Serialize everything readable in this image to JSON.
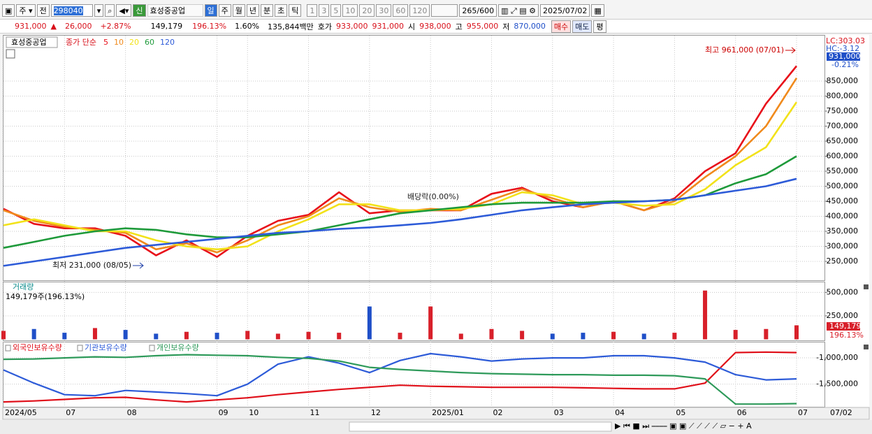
{
  "toolbar": {
    "market": "주",
    "prev": "전",
    "code": "298040",
    "new_flag": "신",
    "name": "효성중공업",
    "periods": [
      "일",
      "주",
      "월",
      "년",
      "분",
      "초",
      "틱"
    ],
    "intervals": [
      "1",
      "3",
      "5",
      "10",
      "20",
      "30",
      "60",
      "120"
    ],
    "count": "265",
    "count_max": "/600",
    "date": "2025/07/02"
  },
  "quote": {
    "price": "931,000",
    "arrow": "▲",
    "change": "26,000",
    "change_pct": "+2.87%",
    "volume": "149,179",
    "volume_ratio": "196.13%",
    "turnover": "1.60%",
    "amount": "135,844백만",
    "bid_label": "호가",
    "ask": "933,000",
    "bid": "931,000",
    "open_label": "시",
    "open": "938,000",
    "high_label": "고",
    "high": "955,000",
    "low_label": "저",
    "low": "870,000",
    "buy": "매수",
    "sell": "매도",
    "avg": "평"
  },
  "chart_data": [
    {
      "type": "line",
      "title": "효성중공업",
      "legend_prefix": "종가 단순",
      "categories": [
        "2024/05",
        null,
        "07",
        null,
        "08",
        null,
        null,
        "09",
        "10",
        null,
        "11",
        null,
        "12",
        null,
        "2025/01",
        null,
        "02",
        null,
        "03",
        null,
        "04",
        null,
        "05",
        null,
        "06",
        null,
        "07"
      ],
      "ylim": [
        190000,
        1000000
      ],
      "yticks": [
        {
          "value": 250000,
          "label": "250,000"
        },
        {
          "value": 300000,
          "label": "300,000"
        },
        {
          "value": 350000,
          "label": "350,000"
        },
        {
          "value": 400000,
          "label": "400,000"
        },
        {
          "value": 450000,
          "label": "450,000"
        },
        {
          "value": 500000,
          "label": "500,000"
        },
        {
          "value": 550000,
          "label": "550,000"
        },
        {
          "value": 600000,
          "label": "600,000"
        },
        {
          "value": 650000,
          "label": "650,000"
        },
        {
          "value": 700000,
          "label": "700,000"
        },
        {
          "value": 750000,
          "label": "750,000"
        },
        {
          "value": 800000,
          "label": "800,000"
        },
        {
          "value": 850000,
          "label": "850,000"
        }
      ],
      "grid": true,
      "series": [
        {
          "name": "5",
          "color": "#e8101a",
          "values": [
            425000,
            375000,
            360000,
            360000,
            335000,
            270000,
            320000,
            265000,
            335000,
            385000,
            405000,
            480000,
            410000,
            420000,
            420000,
            420000,
            475000,
            495000,
            450000,
            430000,
            450000,
            420000,
            460000,
            550000,
            610000,
            775000,
            900000
          ]
        },
        {
          "name": "10",
          "color": "#f08a1c",
          "values": [
            420000,
            385000,
            365000,
            355000,
            345000,
            290000,
            310000,
            280000,
            320000,
            370000,
            400000,
            460000,
            430000,
            415000,
            425000,
            420000,
            455000,
            490000,
            460000,
            430000,
            450000,
            420000,
            450000,
            530000,
            600000,
            700000,
            860000
          ]
        },
        {
          "name": "20",
          "color": "#f2e21a",
          "values": [
            370000,
            390000,
            370000,
            350000,
            350000,
            320000,
            300000,
            290000,
            300000,
            350000,
            390000,
            440000,
            440000,
            420000,
            420000,
            425000,
            440000,
            480000,
            470000,
            440000,
            445000,
            435000,
            440000,
            490000,
            570000,
            630000,
            780000
          ]
        },
        {
          "name": "60",
          "color": "#1e9a3a",
          "values": [
            295000,
            315000,
            335000,
            350000,
            360000,
            355000,
            340000,
            330000,
            330000,
            340000,
            350000,
            370000,
            390000,
            410000,
            420000,
            430000,
            440000,
            445000,
            445000,
            445000,
            450000,
            450000,
            455000,
            470000,
            510000,
            540000,
            600000
          ]
        },
        {
          "name": "120",
          "color": "#2d5bd8",
          "values": [
            235000,
            250000,
            265000,
            280000,
            295000,
            305000,
            315000,
            325000,
            335000,
            345000,
            350000,
            358000,
            363000,
            370000,
            378000,
            390000,
            405000,
            420000,
            430000,
            440000,
            445000,
            450000,
            455000,
            470000,
            485000,
            500000,
            525000
          ]
        }
      ],
      "annotations": [
        "최고 961,000 (07/01)",
        "최저 231,000 (08/05)",
        "배당락(0.00%)"
      ],
      "side_labels": [
        "LC:303.03",
        "HC:-3.12",
        "931,000",
        "-0.21%"
      ],
      "last_date": "07/02"
    },
    {
      "type": "bar",
      "title": "거래량",
      "subtitle": "149,179주(196.13%)",
      "values": [
        90000,
        110000,
        70000,
        120000,
        100000,
        60000,
        80000,
        70000,
        90000,
        60000,
        80000,
        70000,
        350000,
        70000,
        350000,
        60000,
        110000,
        90000,
        60000,
        70000,
        80000,
        60000,
        70000,
        520000,
        100000,
        110000,
        149179
      ],
      "value_labels_last": [
        "149,179",
        "196.13%"
      ],
      "up_color": "#d8202a",
      "down_color": "#1f4fc8",
      "ylim": [
        0,
        600000
      ],
      "yticks": [
        {
          "value": 250000,
          "label": "250,000"
        },
        {
          "value": 500000,
          "label": "500,000"
        }
      ]
    },
    {
      "type": "line",
      "ylim": [
        -1930000,
        -720000
      ],
      "yticks": [
        {
          "value": -1500000,
          "label": "-1,500,000"
        },
        {
          "value": -1000000,
          "label": "-1,000,000"
        }
      ],
      "series": [
        {
          "name": "외국인보유수량",
          "color": "#e0101a",
          "values": [
            -1838000,
            -1820000,
            -1790000,
            -1760000,
            -1750000,
            -1800000,
            -1838000,
            -1800000,
            -1760000,
            -1700000,
            -1650000,
            -1600000,
            -1560000,
            -1520000,
            -1540000,
            -1550000,
            -1560000,
            -1560000,
            -1560000,
            -1570000,
            -1580000,
            -1590000,
            -1590000,
            -1480000,
            -900000,
            -890000,
            -900000
          ]
        },
        {
          "name": "기관보유수량",
          "color": "#2d5bd8",
          "values": [
            -1230000,
            -1480000,
            -1700000,
            -1720000,
            -1620000,
            -1650000,
            -1680000,
            -1720000,
            -1500000,
            -1120000,
            -980000,
            -1100000,
            -1280000,
            -1050000,
            -920000,
            -980000,
            -1060000,
            -1020000,
            -1000000,
            -1000000,
            -960000,
            -960000,
            -1000000,
            -1080000,
            -1320000,
            -1420000,
            -1400000
          ]
        },
        {
          "name": "개인보유수량",
          "color": "#2e9a5a",
          "values": [
            -1027000,
            -1020000,
            -1000000,
            -980000,
            -990000,
            -960000,
            -940000,
            -950000,
            -960000,
            -990000,
            -1010000,
            -1060000,
            -1180000,
            -1220000,
            -1250000,
            -1280000,
            -1300000,
            -1310000,
            -1320000,
            -1320000,
            -1330000,
            -1330000,
            -1340000,
            -1400000,
            -1880000,
            -1880000,
            -1870000
          ]
        }
      ]
    }
  ]
}
